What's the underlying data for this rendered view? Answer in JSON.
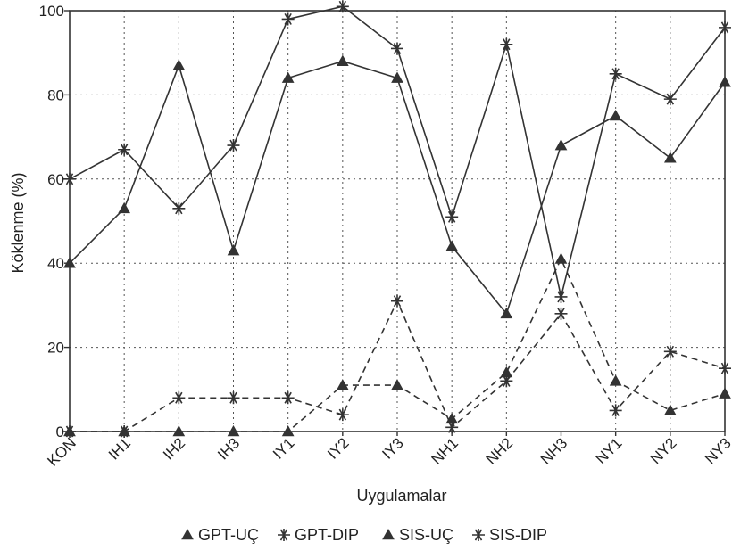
{
  "chart_data": {
    "type": "line",
    "categories": [
      "KON",
      "IH1",
      "IH2",
      "IH3",
      "IY1",
      "IY2",
      "IY3",
      "NH1",
      "NH2",
      "NH3",
      "NY1",
      "NY2",
      "NY3"
    ],
    "xlabel": "Uygulamalar",
    "ylabel": "Köklenme (%)",
    "ylim": [
      0,
      100
    ],
    "yticks": [
      "0",
      "20",
      "40",
      "60",
      "80",
      "100"
    ],
    "grid": true,
    "legend_position": "bottom",
    "series": [
      {
        "name": "GPT-UÇ",
        "marker": "triangle",
        "style": "solid",
        "color": "#333333",
        "values": [
          40,
          53,
          87,
          43,
          84,
          88,
          84,
          44,
          28,
          68,
          75,
          65,
          83
        ]
      },
      {
        "name": "GPT-DIP",
        "marker": "asterisk",
        "style": "solid",
        "color": "#333333",
        "values": [
          60,
          67,
          53,
          68,
          98,
          101,
          91,
          51,
          92,
          32,
          85,
          79,
          96
        ]
      },
      {
        "name": "SIS-UÇ",
        "marker": "triangle",
        "style": "dashed",
        "color": "#333333",
        "values": [
          0,
          0,
          0,
          0,
          0,
          11,
          11,
          3,
          14,
          41,
          12,
          5,
          9
        ]
      },
      {
        "name": "SIS-DIP",
        "marker": "asterisk",
        "style": "dashed",
        "color": "#333333",
        "values": [
          0,
          0,
          8,
          8,
          8,
          4,
          31,
          1,
          12,
          28,
          5,
          19,
          15
        ]
      }
    ]
  }
}
